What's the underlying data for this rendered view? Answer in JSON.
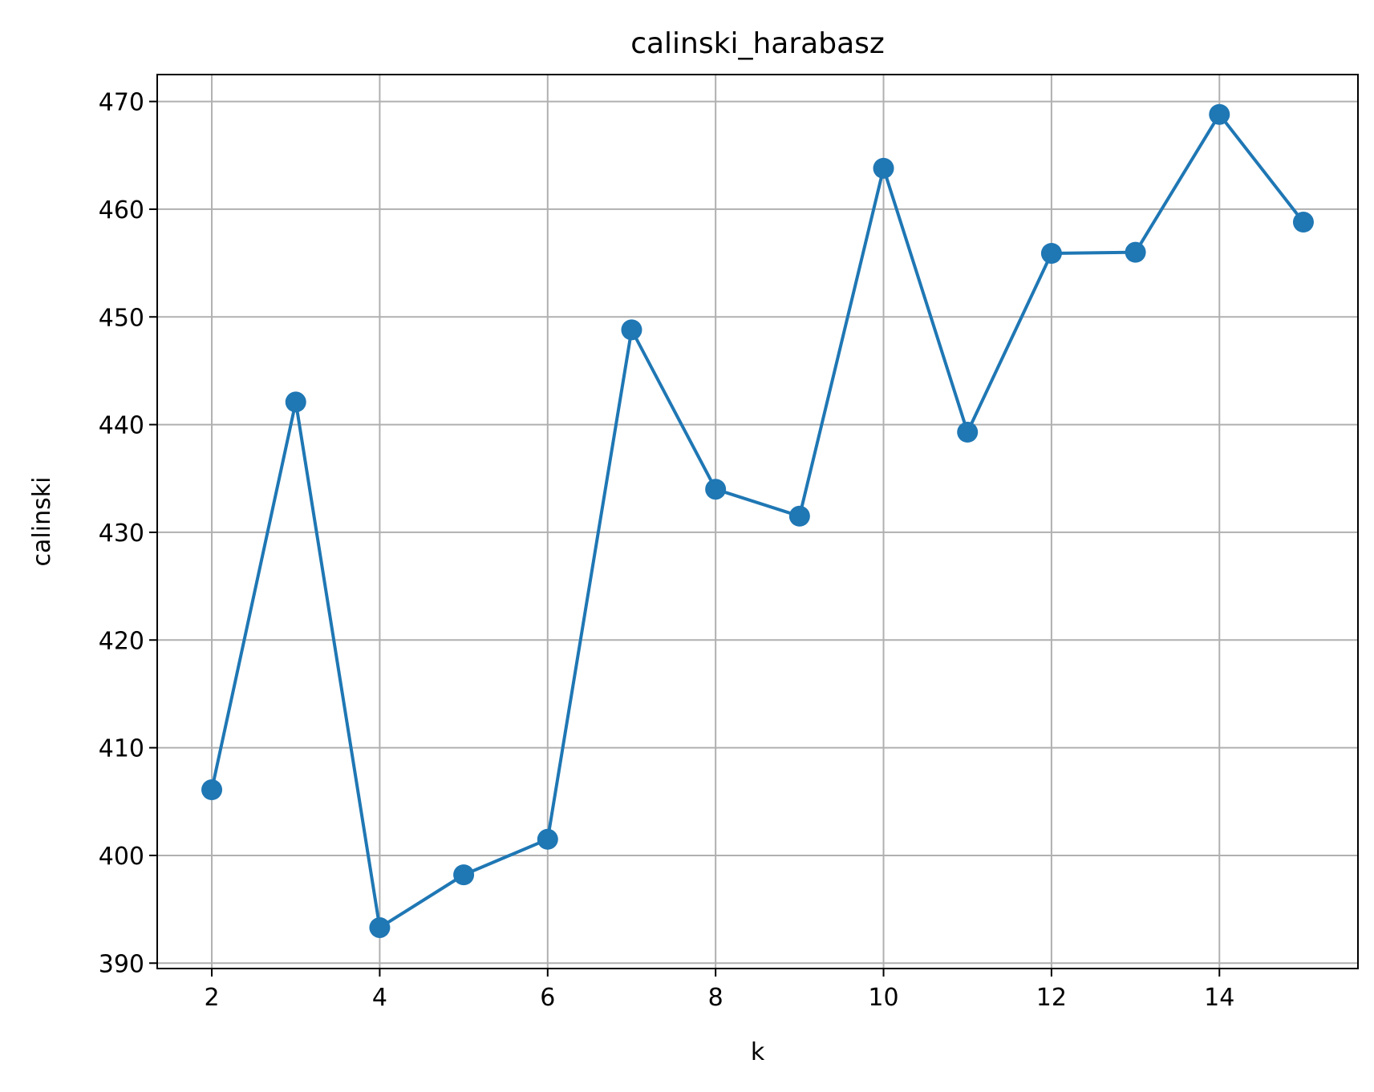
{
  "chart_data": {
    "type": "line",
    "title": "calinski_harabasz",
    "xlabel": "k",
    "ylabel": "calinski",
    "x": [
      2,
      3,
      4,
      5,
      6,
      7,
      8,
      9,
      10,
      11,
      12,
      13,
      14,
      15
    ],
    "series": [
      {
        "values": [
          406.1,
          442.1,
          393.3,
          398.2,
          401.5,
          448.8,
          434.0,
          431.5,
          463.8,
          439.3,
          455.9,
          456.0,
          468.8,
          458.8
        ],
        "color": "#1f77b4",
        "marker": "circle"
      }
    ],
    "xlim": [
      1.35,
      15.65
    ],
    "ylim": [
      389.5,
      472.5
    ],
    "xticks": [
      2,
      4,
      6,
      8,
      10,
      12,
      14
    ],
    "yticks": [
      390,
      400,
      410,
      420,
      430,
      440,
      450,
      460,
      470
    ],
    "grid": true,
    "colors": {
      "grid": "#b0b0b0",
      "axes": "#000000",
      "background": "#ffffff"
    }
  }
}
